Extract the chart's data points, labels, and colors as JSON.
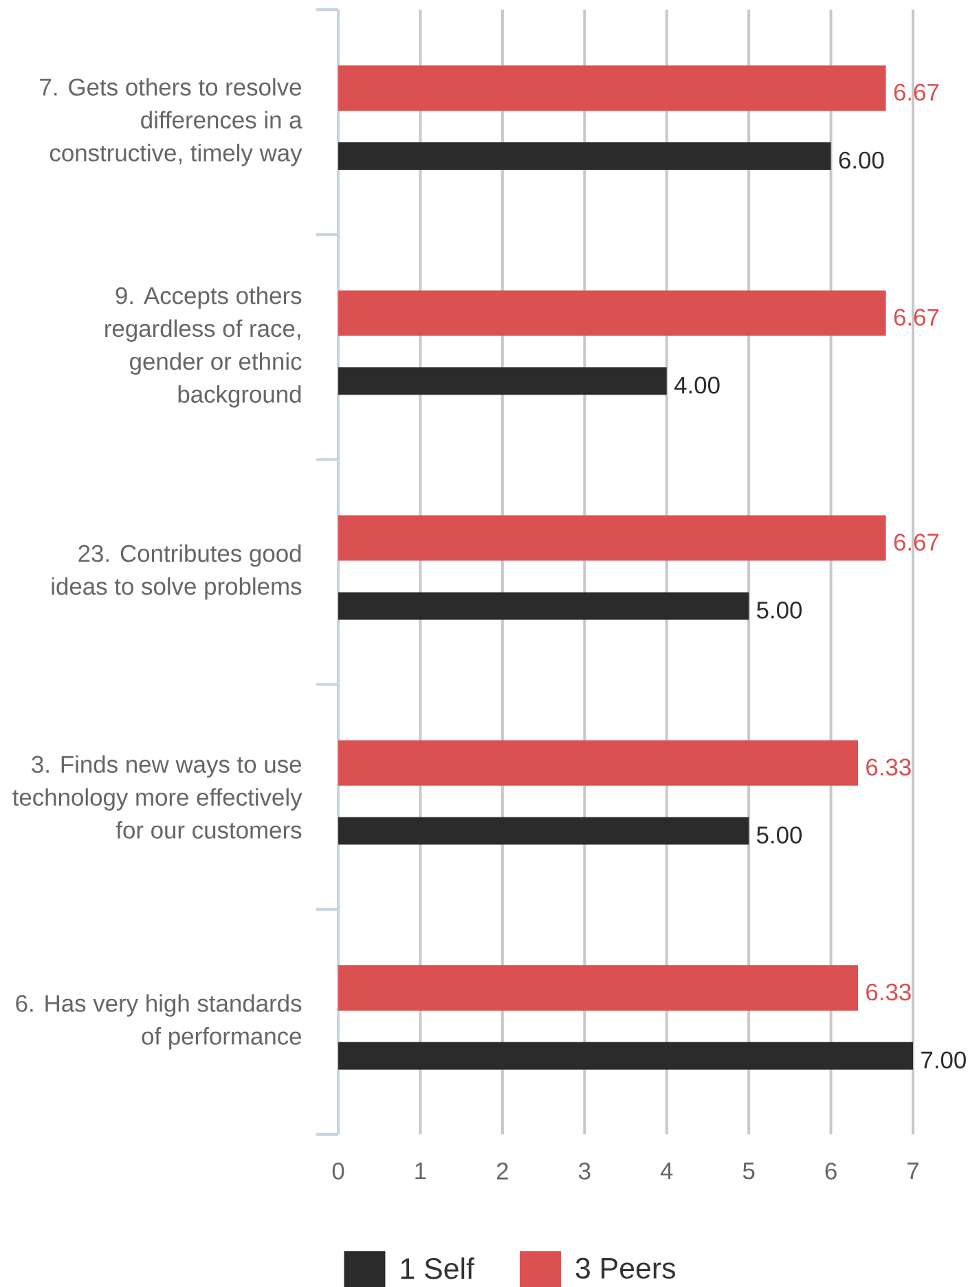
{
  "chart_data": {
    "type": "bar",
    "orientation": "horizontal",
    "categories": [
      "7. Gets others to resolve differences in a constructive, timely way",
      "9. Accepts others regardless of race, gender or ethnic background",
      "23. Contributes good ideas to solve problems",
      "3. Finds new ways to use technology more effectively for our customers",
      "6. Has very high standards of performance"
    ],
    "series": [
      {
        "name": "1 Self",
        "color": "#2b2b2b",
        "values": [
          6,
          4,
          5,
          5,
          7
        ],
        "value_labels": [
          "6.00",
          "4.00",
          "5.00",
          "5.00",
          "7.00"
        ]
      },
      {
        "name": "3 Peers",
        "color": "#db5050",
        "values": [
          6.67,
          6.67,
          6.67,
          6.33,
          6.33
        ],
        "value_labels": [
          "6.67",
          "6.67",
          "6.67",
          "6.33",
          "6.33"
        ]
      }
    ],
    "xlim": [
      0,
      7
    ],
    "xticks": [
      0,
      1,
      2,
      3,
      4,
      5,
      6,
      7
    ],
    "grid": "x",
    "legend": "bottom"
  }
}
